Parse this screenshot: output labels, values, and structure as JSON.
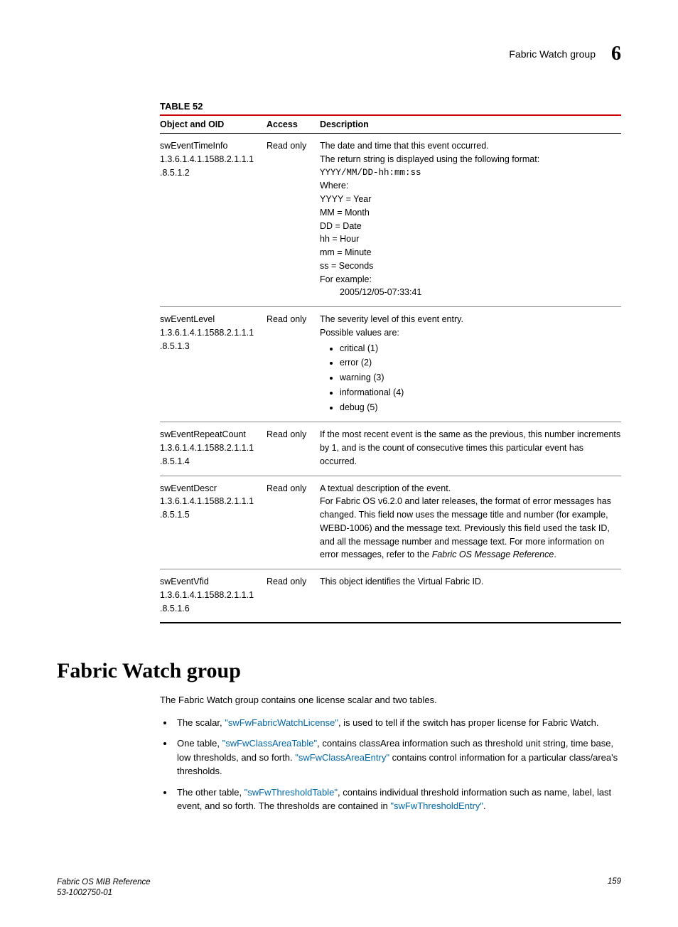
{
  "header": {
    "section_title": "Fabric Watch group",
    "chapter_number": "6"
  },
  "table": {
    "caption": "TABLE 52",
    "columns": [
      "Object and OID",
      "Access",
      "Description"
    ],
    "rows": [
      {
        "name": "swEventTimeInfo",
        "oid1": "1.3.6.1.4.1.1588.2.1.1.1",
        "oid2": ".8.5.1.2",
        "access": "Read only",
        "desc_lines": [
          "The date and time that this event occurred.",
          "The return string is displayed using the following format:"
        ],
        "code": "YYYY/MM/DD-hh:mm:ss",
        "where_label": "Where:",
        "where": [
          "YYYY = Year",
          "MM = Month",
          "DD = Date",
          "hh = Hour",
          "mm = Minute",
          "ss = Seconds"
        ],
        "example_label": "For example:",
        "example_value": "2005/12/05-07:33:41"
      },
      {
        "name": "swEventLevel",
        "oid1": "1.3.6.1.4.1.1588.2.1.1.1",
        "oid2": ".8.5.1.3",
        "access": "Read only",
        "desc_lines": [
          "The severity level of this event entry.",
          "Possible values are:"
        ],
        "bullets": [
          "critical (1)",
          "error (2)",
          "warning (3)",
          "informational (4)",
          "debug (5)"
        ]
      },
      {
        "name": "swEventRepeatCount",
        "oid1": "1.3.6.1.4.1.1588.2.1.1.1",
        "oid2": ".8.5.1.4",
        "access": "Read only",
        "desc_text": "If the most recent event is the same as the previous, this number increments by 1, and is the count of consecutive times this particular event has occurred."
      },
      {
        "name": "swEventDescr",
        "oid1": "1.3.6.1.4.1.1588.2.1.1.1",
        "oid2": ".8.5.1.5",
        "access": "Read only",
        "desc_lines": [
          "A textual description of the event."
        ],
        "desc_rest_pre": "For Fabric OS v6.2.0 and later releases, the format of error messages has changed. This field now uses the message title and number (for example, WEBD-1006) and the message text. Previously this field used the task ID, and all the message number and message text. For more information on error messages, refer to the ",
        "desc_rest_italic": "Fabric OS Message Reference",
        "desc_rest_post": "."
      },
      {
        "name": "swEventVfid",
        "oid1": "1.3.6.1.4.1.1588.2.1.1.1",
        "oid2": ".8.5.1.6",
        "access": "Read only",
        "desc_text": "This object identifies the Virtual Fabric ID."
      }
    ]
  },
  "section": {
    "heading": "Fabric Watch group",
    "intro": "The Fabric Watch group contains one license scalar and two tables.",
    "bullets": [
      {
        "parts": [
          {
            "t": "text",
            "v": "The scalar, "
          },
          {
            "t": "link",
            "v": "\"swFwFabricWatchLicense\""
          },
          {
            "t": "text",
            "v": ", is used to tell if the switch has proper license for Fabric Watch."
          }
        ]
      },
      {
        "parts": [
          {
            "t": "text",
            "v": "One table, "
          },
          {
            "t": "link",
            "v": "\"swFwClassAreaTable\""
          },
          {
            "t": "text",
            "v": ", contains classArea information such as threshold unit string, time base, low thresholds, and so forth. "
          },
          {
            "t": "link",
            "v": "\"swFwClassAreaEntry\""
          },
          {
            "t": "text",
            "v": " contains control information for a particular class/area's thresholds."
          }
        ]
      },
      {
        "parts": [
          {
            "t": "text",
            "v": "The other table, "
          },
          {
            "t": "link",
            "v": "\"swFwThresholdTable\""
          },
          {
            "t": "text",
            "v": ", contains individual threshold information such as name, label, last event, and so forth. The thresholds are contained in "
          },
          {
            "t": "link",
            "v": "\"swFwThresholdEntry\""
          },
          {
            "t": "text",
            "v": "."
          }
        ]
      }
    ]
  },
  "footer": {
    "title": "Fabric OS MIB Reference",
    "doc_number": "53-1002750-01",
    "page": "159"
  }
}
